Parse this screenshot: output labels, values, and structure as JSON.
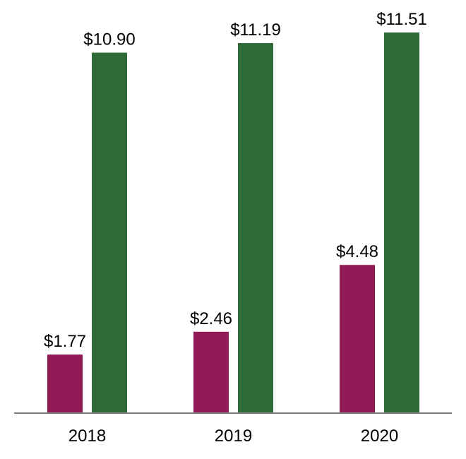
{
  "chart_data": {
    "type": "bar",
    "categories": [
      "2018",
      "2019",
      "2020"
    ],
    "series": [
      {
        "color": "#921a57",
        "values": [
          1.77,
          2.46,
          4.48
        ],
        "labels": [
          "$1.77",
          "$2.46",
          "$4.48"
        ]
      },
      {
        "color": "#2e6b39",
        "values": [
          10.9,
          11.19,
          11.51
        ],
        "labels": [
          "$10.90",
          "$11.19",
          "$11.51"
        ]
      }
    ],
    "title": "",
    "xlabel": "",
    "ylabel": "",
    "ylim": [
      0,
      11.51
    ],
    "grid": false,
    "legend": "none",
    "axis_color": "#7f7f7f"
  }
}
